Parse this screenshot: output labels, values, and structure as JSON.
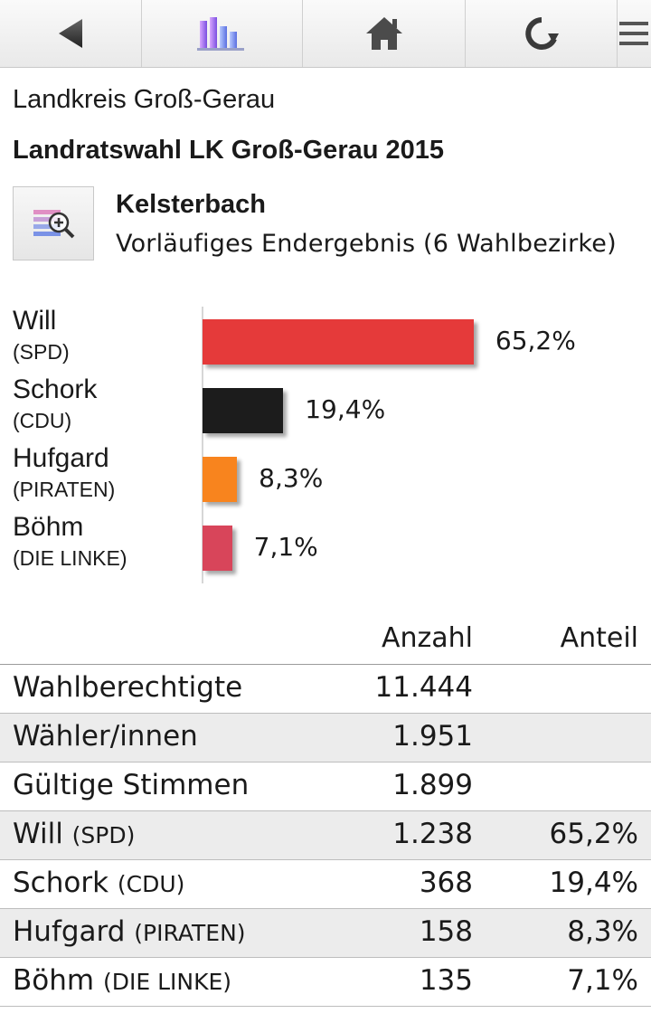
{
  "toolbar": {
    "items": [
      {
        "icon": "back-triangle-icon"
      },
      {
        "icon": "bar-chart-icon"
      },
      {
        "icon": "home-icon"
      },
      {
        "icon": "refresh-icon"
      },
      {
        "icon": "menu-icon"
      }
    ]
  },
  "header": {
    "region": "Landkreis Groß-Gerau",
    "election": "Landratswahl LK Groß-Gerau 2015",
    "place": "Kelsterbach",
    "status": "Vorläufiges Endergebnis (6 Wahlbezirke)"
  },
  "chart_data": {
    "type": "bar",
    "orientation": "horizontal",
    "categories": [
      "Will (SPD)",
      "Schork (CDU)",
      "Hufgard (PIRATEN)",
      "Böhm (DIE LINKE)"
    ],
    "candidates": [
      {
        "name": "Will",
        "party": "(SPD)",
        "value": 65.2,
        "label": "65,2%",
        "color": "#e53a3a"
      },
      {
        "name": "Schork",
        "party": "(CDU)",
        "value": 19.4,
        "label": "19,4%",
        "color": "#1c1c1c"
      },
      {
        "name": "Hufgard",
        "party": "(PIRATEN)",
        "value": 8.3,
        "label": "8,3%",
        "color": "#f8841e"
      },
      {
        "name": "Böhm",
        "party": "(DIE LINKE)",
        "value": 7.1,
        "label": "7,1%",
        "color": "#d8455a"
      }
    ]
  },
  "table": {
    "headers": {
      "count": "Anzahl",
      "share": "Anteil"
    },
    "rows": [
      {
        "label": "Wahlberechtigte",
        "party": "",
        "count": "11.444",
        "share": ""
      },
      {
        "label": "Wähler/innen",
        "party": "",
        "count": "1.951",
        "share": ""
      },
      {
        "label": "Gültige Stimmen",
        "party": "",
        "count": "1.899",
        "share": ""
      },
      {
        "label": "Will",
        "party": "(SPD)",
        "count": "1.238",
        "share": "65,2%"
      },
      {
        "label": "Schork",
        "party": "(CDU)",
        "count": "368",
        "share": "19,4%"
      },
      {
        "label": "Hufgard",
        "party": "(PIRATEN)",
        "count": "158",
        "share": "8,3%"
      },
      {
        "label": "Böhm",
        "party": "(DIE LINKE)",
        "count": "135",
        "share": "7,1%"
      }
    ]
  }
}
